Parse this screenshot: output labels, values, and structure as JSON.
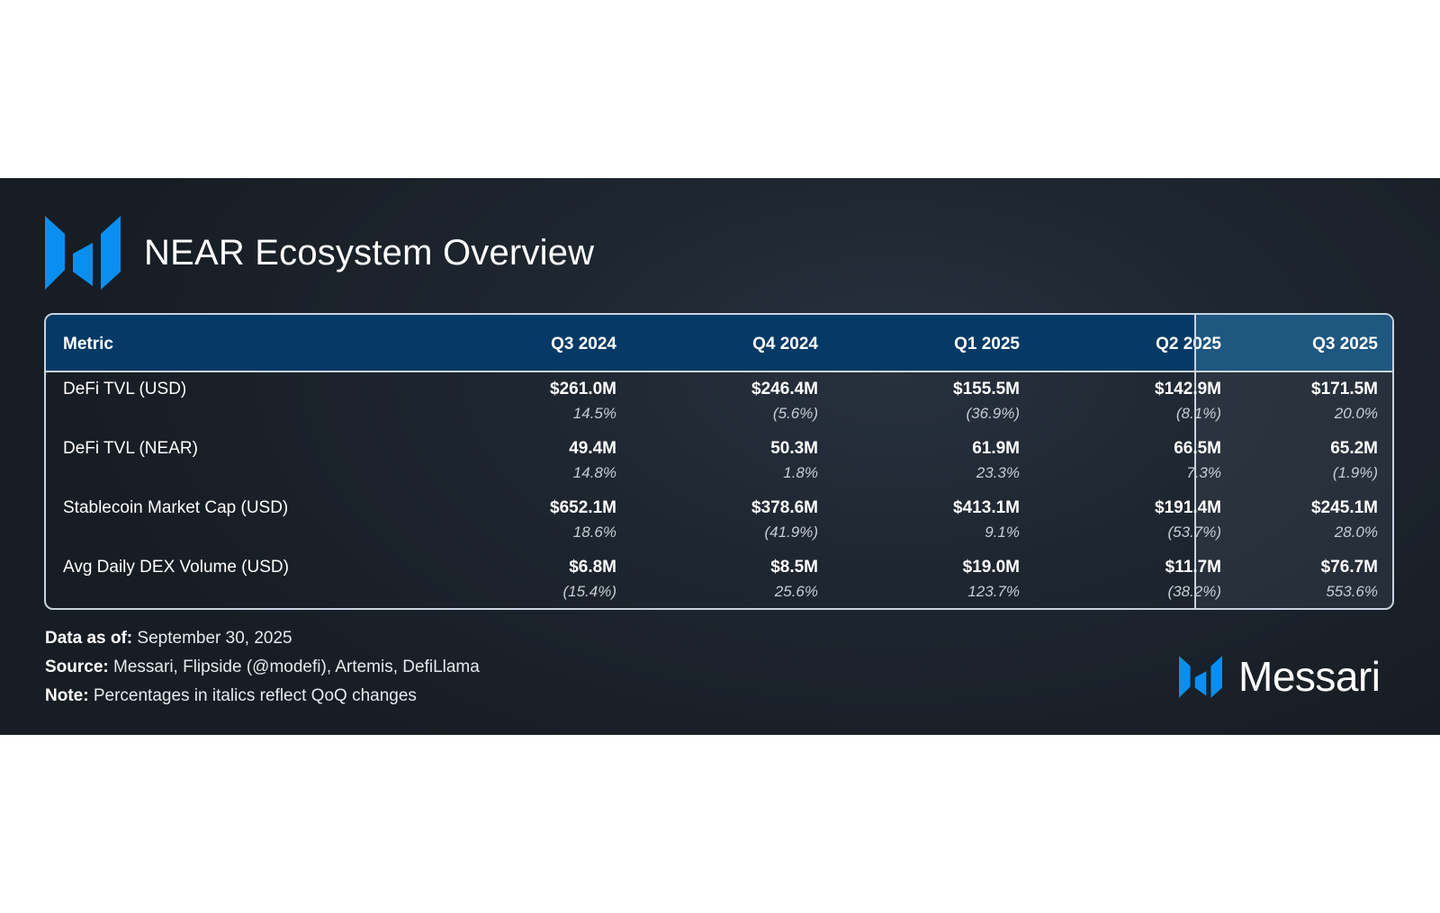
{
  "header": {
    "title": "NEAR Ecosystem Overview",
    "logo_icon": "messari-logo-icon",
    "accent_color": "#0a8ff0"
  },
  "table": {
    "columns": [
      "Metric",
      "Q3 2024",
      "Q4 2024",
      "Q1 2025",
      "Q2 2025",
      "Q3 2025"
    ],
    "rows": [
      {
        "label": "DeFi TVL (USD)",
        "values": [
          "$261.0M",
          "$246.4M",
          "$155.5M",
          "$142.9M",
          "$171.5M"
        ],
        "changes": [
          "14.5%",
          "(5.6%)",
          "(36.9%)",
          "(8.1%)",
          "20.0%"
        ]
      },
      {
        "label": "DeFi TVL (NEAR)",
        "values": [
          "49.4M",
          "50.3M",
          "61.9M",
          "66.5M",
          "65.2M"
        ],
        "changes": [
          "14.8%",
          "1.8%",
          "23.3%",
          "7.3%",
          "(1.9%)"
        ]
      },
      {
        "label": "Stablecoin Market Cap (USD)",
        "values": [
          "$652.1M",
          "$378.6M",
          "$413.1M",
          "$191.4M",
          "$245.1M"
        ],
        "changes": [
          "18.6%",
          "(41.9%)",
          "9.1%",
          "(53.7%)",
          "28.0%"
        ]
      },
      {
        "label": "Avg Daily DEX Volume (USD)",
        "values": [
          "$6.8M",
          "$8.5M",
          "$19.0M",
          "$11.7M",
          "$76.7M"
        ],
        "changes": [
          "(15.4%)",
          "25.6%",
          "123.7%",
          "(38.2%)",
          "553.6%"
        ]
      }
    ]
  },
  "footer": {
    "data_as_of_label": "Data as of:",
    "data_as_of_value": "September 30, 2025",
    "source_label": "Source:",
    "source_value": "Messari, Flipside (@modefi), Artemis, DefiLlama",
    "note_label": "Note:",
    "note_value": "Percentages in italics reflect QoQ changes"
  },
  "brand": {
    "name": "Messari",
    "icon": "messari-logo-icon"
  }
}
